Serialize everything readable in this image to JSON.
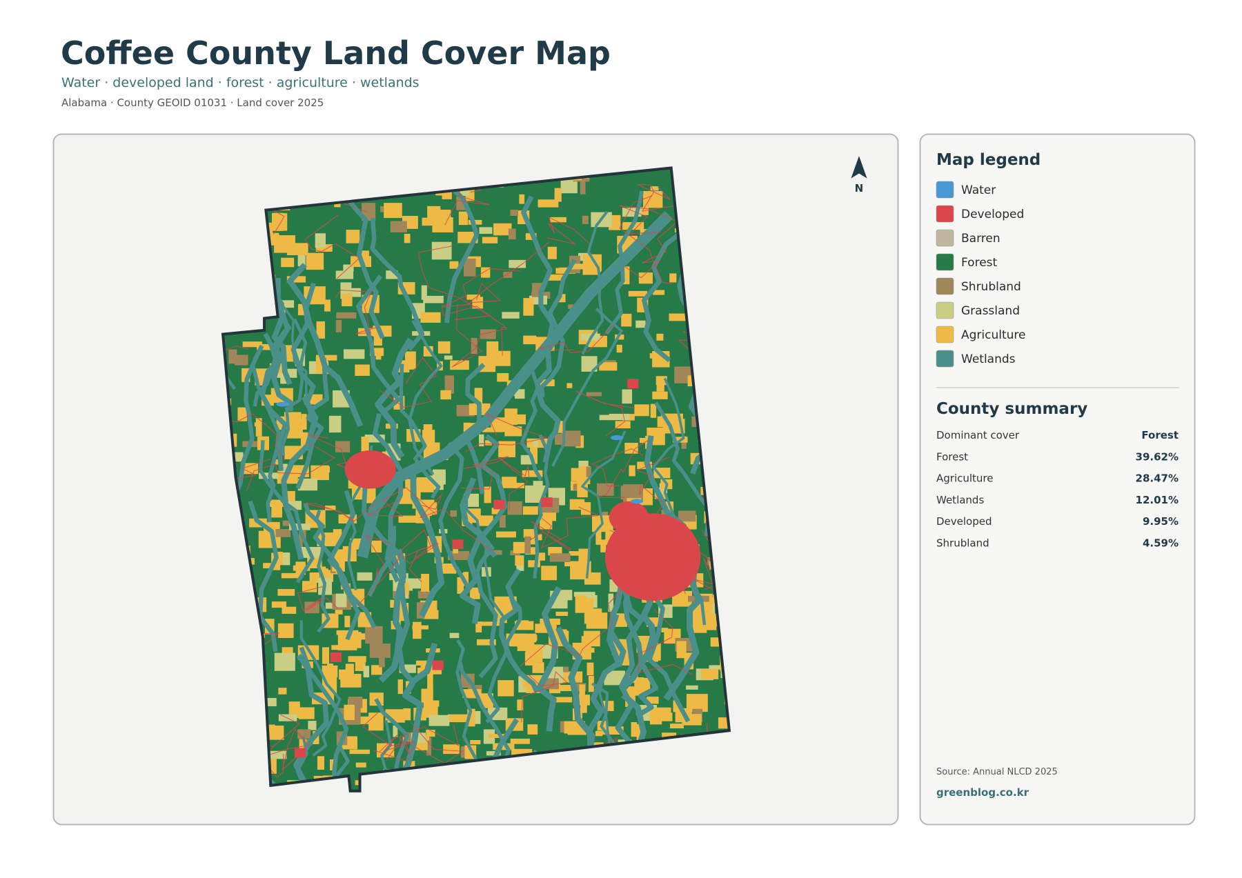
{
  "header": {
    "title": "Coffee County Land Cover Map",
    "subtitle": "Water · developed land · forest · agriculture · wetlands",
    "meta": "Alabama · County GEOID 01031 · Land cover 2025"
  },
  "map": {
    "north_label": "N"
  },
  "legend": {
    "title": "Map legend",
    "items": [
      {
        "label": "Water",
        "color": "#4a97d6"
      },
      {
        "label": "Developed",
        "color": "#d9474a"
      },
      {
        "label": "Barren",
        "color": "#bfb6a2"
      },
      {
        "label": "Forest",
        "color": "#267a48"
      },
      {
        "label": "Shrubland",
        "color": "#a08658"
      },
      {
        "label": "Grassland",
        "color": "#c9ce84"
      },
      {
        "label": "Agriculture",
        "color": "#edbb45"
      },
      {
        "label": "Wetlands",
        "color": "#4b8f8a"
      }
    ]
  },
  "summary": {
    "title": "County summary",
    "rows": [
      [
        "Dominant cover",
        "Forest"
      ],
      [
        "Forest",
        "39.62%"
      ],
      [
        "Agriculture",
        "28.47%"
      ],
      [
        "Wetlands",
        "12.01%"
      ],
      [
        "Developed",
        "9.95%"
      ],
      [
        "Shrubland",
        "4.59%"
      ]
    ]
  },
  "footer": {
    "source": "Source: Annual NLCD 2025",
    "site": "greenblog.co.kr"
  }
}
